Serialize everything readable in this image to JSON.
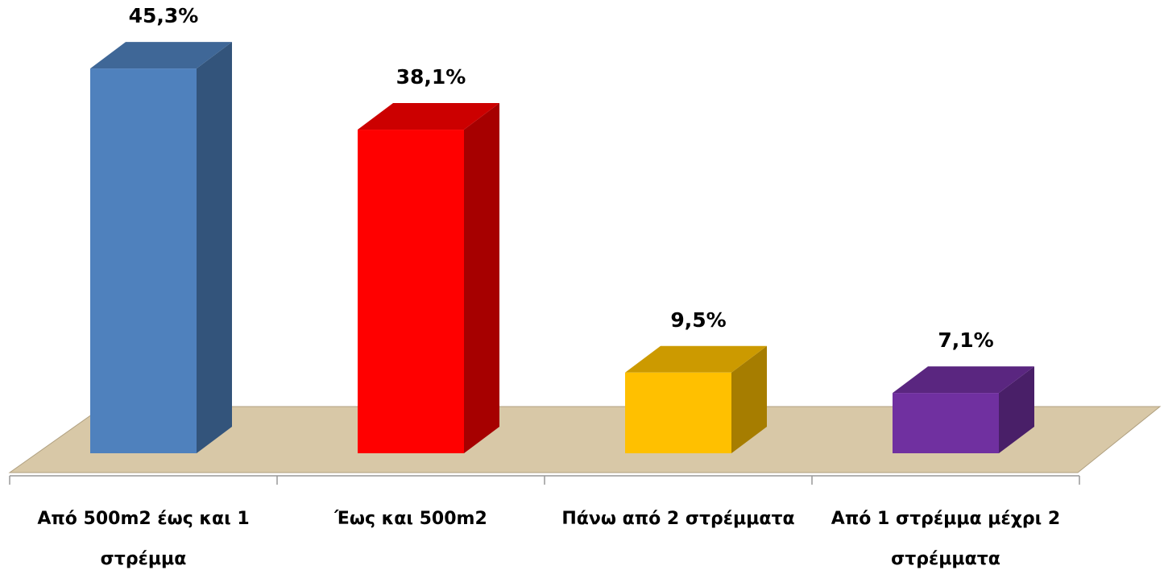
{
  "chart_data": {
    "type": "bar3d",
    "categories": [
      "Από 500m2 έως και 1 στρέμμα",
      "Έως και 500m2",
      "Πάνω από 2 στρέμματα",
      "Από 1 στρέμμα μέχρι 2 στρέμματα"
    ],
    "values": [
      45.3,
      38.1,
      9.5,
      7.1
    ],
    "value_labels": [
      "45,3%",
      "38,1%",
      "9,5%",
      "7,1%"
    ],
    "colors": [
      "#4f81bd",
      "#ff0000",
      "#ffc000",
      "#7030a0"
    ]
  }
}
